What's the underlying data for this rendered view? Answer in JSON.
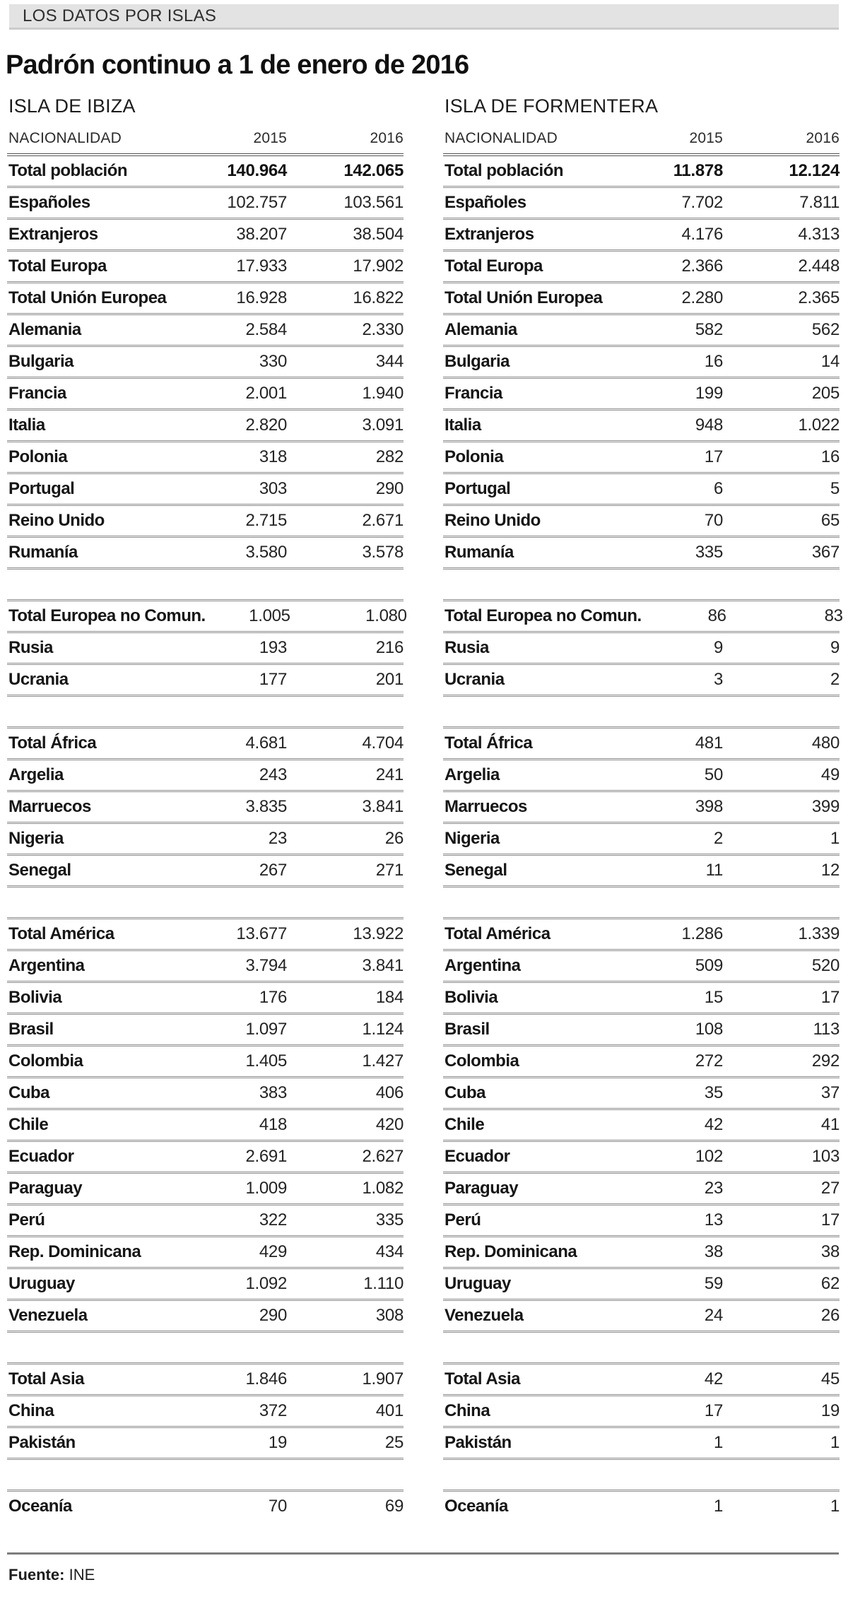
{
  "kicker": "LOS DATOS POR ISLAS",
  "title": "Padrón continuo a 1 de enero de 2016",
  "table_header": {
    "nationality": "NACIONALIDAD",
    "col2015": "2015",
    "col2016": "2016"
  },
  "source": {
    "label": "Fuente:",
    "value": "INE"
  },
  "colors": {
    "kicker_bar_bg": "#e3e3e3",
    "row_rule": "#8d8d8d",
    "header_rule": "#4f4f4f",
    "text": "#1a1a1a"
  },
  "chart_data": {
    "type": "table",
    "title": "Padrón continuo a 1 de enero de 2016",
    "column_headers": [
      "NACIONALIDAD",
      "2015",
      "2016"
    ],
    "tables": [
      {
        "name": "ISLA DE IBIZA",
        "groups": [
          [
            [
              "Total población",
              "140.964",
              "142.065"
            ],
            [
              "Españoles",
              "102.757",
              "103.561"
            ],
            [
              "Extranjeros",
              "38.207",
              "38.504"
            ],
            [
              "Total Europa",
              "17.933",
              "17.902"
            ],
            [
              "Total Unión Europea",
              "16.928",
              "16.822"
            ],
            [
              "Alemania",
              "2.584",
              "2.330"
            ],
            [
              "Bulgaria",
              "330",
              "344"
            ],
            [
              "Francia",
              "2.001",
              "1.940"
            ],
            [
              "Italia",
              "2.820",
              "3.091"
            ],
            [
              "Polonia",
              "318",
              "282"
            ],
            [
              "Portugal",
              "303",
              "290"
            ],
            [
              "Reino Unido",
              "2.715",
              "2.671"
            ],
            [
              "Rumanía",
              "3.580",
              "3.578"
            ]
          ],
          [
            [
              "Total Europea no Comun.",
              "1.005",
              "1.080"
            ],
            [
              "Rusia",
              "193",
              "216"
            ],
            [
              "Ucrania",
              "177",
              "201"
            ]
          ],
          [
            [
              "Total África",
              "4.681",
              "4.704"
            ],
            [
              "Argelia",
              "243",
              "241"
            ],
            [
              "Marruecos",
              "3.835",
              "3.841"
            ],
            [
              "Nigeria",
              "23",
              "26"
            ],
            [
              "Senegal",
              "267",
              "271"
            ]
          ],
          [
            [
              "Total América",
              "13.677",
              "13.922"
            ],
            [
              "Argentina",
              "3.794",
              "3.841"
            ],
            [
              "Bolivia",
              "176",
              "184"
            ],
            [
              "Brasil",
              "1.097",
              "1.124"
            ],
            [
              "Colombia",
              "1.405",
              "1.427"
            ],
            [
              "Cuba",
              "383",
              "406"
            ],
            [
              "Chile",
              "418",
              "420"
            ],
            [
              "Ecuador",
              "2.691",
              "2.627"
            ],
            [
              "Paraguay",
              "1.009",
              "1.082"
            ],
            [
              "Perú",
              "322",
              "335"
            ],
            [
              "Rep. Dominicana",
              "429",
              "434"
            ],
            [
              "Uruguay",
              "1.092",
              "1.110"
            ],
            [
              "Venezuela",
              "290",
              "308"
            ]
          ],
          [
            [
              "Total Asia",
              "1.846",
              "1.907"
            ],
            [
              "China",
              "372",
              "401"
            ],
            [
              "Pakistán",
              "19",
              "25"
            ]
          ],
          [
            [
              "Oceanía",
              "70",
              "69"
            ]
          ]
        ]
      },
      {
        "name": "ISLA DE FORMENTERA",
        "groups": [
          [
            [
              "Total población",
              "11.878",
              "12.124"
            ],
            [
              "Españoles",
              "7.702",
              "7.811"
            ],
            [
              "Extranjeros",
              "4.176",
              "4.313"
            ],
            [
              "Total Europa",
              "2.366",
              "2.448"
            ],
            [
              "Total Unión Europea",
              "2.280",
              "2.365"
            ],
            [
              "Alemania",
              "582",
              "562"
            ],
            [
              "Bulgaria",
              "16",
              "14"
            ],
            [
              "Francia",
              "199",
              "205"
            ],
            [
              "Italia",
              "948",
              "1.022"
            ],
            [
              "Polonia",
              "17",
              "16"
            ],
            [
              "Portugal",
              "6",
              "5"
            ],
            [
              "Reino Unido",
              "70",
              "65"
            ],
            [
              "Rumanía",
              "335",
              "367"
            ]
          ],
          [
            [
              "Total Europea no Comun.",
              "86",
              "83"
            ],
            [
              "Rusia",
              "9",
              "9"
            ],
            [
              "Ucrania",
              "3",
              "2"
            ]
          ],
          [
            [
              "Total África",
              "481",
              "480"
            ],
            [
              "Argelia",
              "50",
              "49"
            ],
            [
              "Marruecos",
              "398",
              "399"
            ],
            [
              "Nigeria",
              "2",
              "1"
            ],
            [
              "Senegal",
              "11",
              "12"
            ]
          ],
          [
            [
              "Total América",
              "1.286",
              "1.339"
            ],
            [
              "Argentina",
              "509",
              "520"
            ],
            [
              "Bolivia",
              "15",
              "17"
            ],
            [
              "Brasil",
              "108",
              "113"
            ],
            [
              "Colombia",
              "272",
              "292"
            ],
            [
              "Cuba",
              "35",
              "37"
            ],
            [
              "Chile",
              "42",
              "41"
            ],
            [
              "Ecuador",
              "102",
              "103"
            ],
            [
              "Paraguay",
              "23",
              "27"
            ],
            [
              "Perú",
              "13",
              "17"
            ],
            [
              "Rep. Dominicana",
              "38",
              "38"
            ],
            [
              "Uruguay",
              "59",
              "62"
            ],
            [
              "Venezuela",
              "24",
              "26"
            ]
          ],
          [
            [
              "Total Asia",
              "42",
              "45"
            ],
            [
              "China",
              "17",
              "19"
            ],
            [
              "Pakistán",
              "1",
              "1"
            ]
          ],
          [
            [
              "Oceanía",
              "1",
              "1"
            ]
          ]
        ]
      }
    ]
  }
}
